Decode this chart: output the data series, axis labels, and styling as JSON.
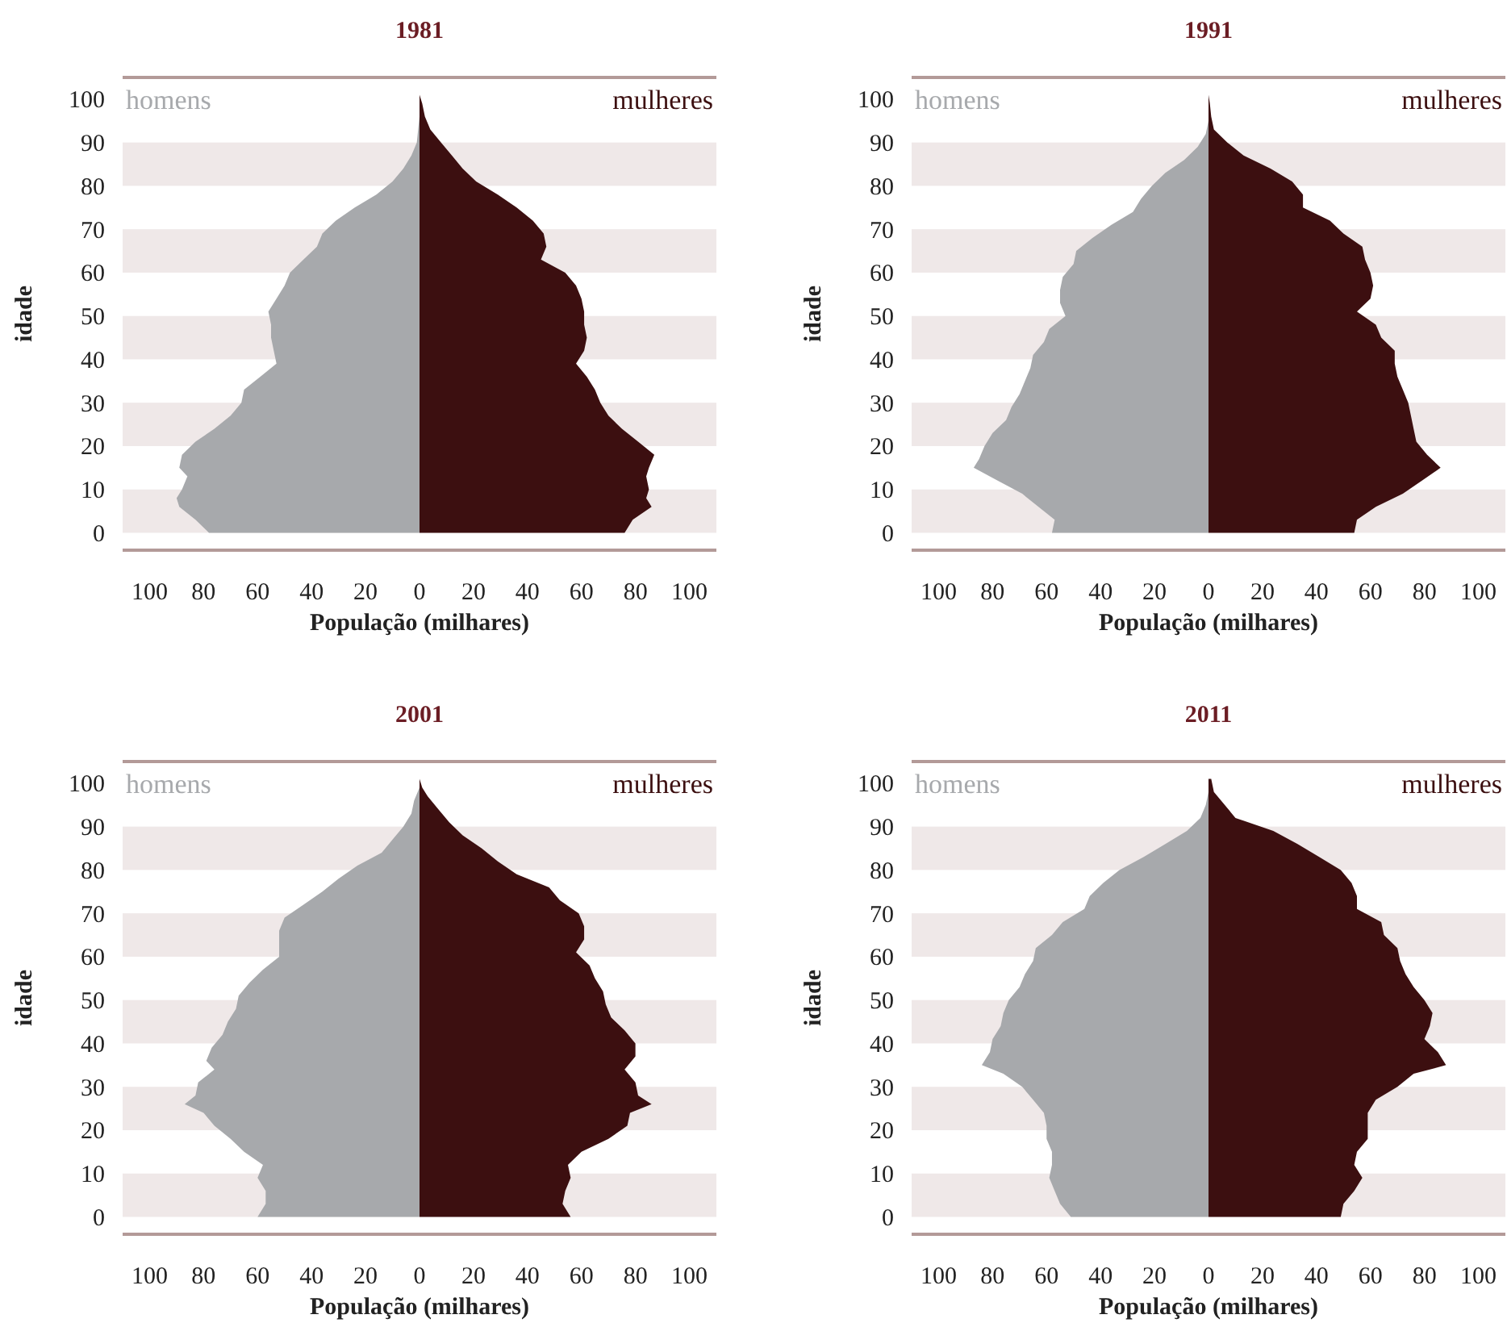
{
  "chart_data": [
    {
      "type": "area",
      "orientation": "horizontal",
      "title": "1981",
      "xlabel": "População (milhares)",
      "ylabel": "idade",
      "xlim": [
        -110,
        110
      ],
      "ylim": [
        -4,
        105
      ],
      "xticks": [
        {
          "value": -100,
          "label": "100"
        },
        {
          "value": -80,
          "label": "80"
        },
        {
          "value": -60,
          "label": "60"
        },
        {
          "value": -40,
          "label": "40"
        },
        {
          "value": -20,
          "label": "20"
        },
        0,
        20,
        40,
        60,
        80,
        100
      ],
      "yticks": [
        0,
        10,
        20,
        30,
        40,
        50,
        60,
        70,
        80,
        90,
        100
      ],
      "bands": [
        {
          "axis": "y",
          "from": 0,
          "to": 10,
          "color": "#efe8e8"
        },
        {
          "axis": "y",
          "from": 20,
          "to": 30,
          "color": "#efe8e8"
        },
        {
          "axis": "y",
          "from": 40,
          "to": 50,
          "color": "#efe8e8"
        },
        {
          "axis": "y",
          "from": 60,
          "to": 70,
          "color": "#efe8e8"
        },
        {
          "axis": "y",
          "from": 80,
          "to": 90,
          "color": "#efe8e8"
        }
      ],
      "series": [
        {
          "name": "homens",
          "color": "#a7a9ac",
          "x": [
            0,
            3,
            6,
            8,
            10,
            13,
            15,
            18,
            21,
            24,
            27,
            30,
            33,
            36,
            39,
            42,
            45,
            48,
            51,
            54,
            57,
            60,
            63,
            66,
            69,
            72,
            75,
            78,
            81,
            84,
            87,
            90,
            93,
            96,
            99,
            101
          ],
          "values": [
            -78,
            -83,
            -89,
            -90,
            -88,
            -86,
            -89,
            -88,
            -83,
            -76,
            -70,
            -66,
            -65,
            -59,
            -53,
            -54,
            -55,
            -55,
            -56,
            -53,
            -50,
            -48,
            -43,
            -38,
            -36,
            -31,
            -24,
            -16,
            -10,
            -6,
            -3,
            -1,
            -0.5,
            0,
            0,
            0
          ]
        },
        {
          "name": "mulheres",
          "color": "#3c0f10",
          "x": [
            0,
            3,
            6,
            8,
            10,
            13,
            15,
            18,
            21,
            24,
            27,
            30,
            33,
            36,
            39,
            42,
            45,
            48,
            51,
            54,
            57,
            60,
            63,
            66,
            69,
            72,
            75,
            78,
            81,
            84,
            87,
            90,
            93,
            96,
            99,
            101
          ],
          "values": [
            76,
            79,
            86,
            84,
            85,
            84,
            85,
            87,
            81,
            75,
            70,
            67,
            65,
            62,
            58,
            61,
            62,
            61,
            61,
            60,
            58,
            54,
            45,
            47,
            46,
            42,
            36,
            29,
            21,
            16,
            12,
            8,
            4,
            2,
            1,
            0
          ]
        }
      ]
    },
    {
      "type": "area",
      "orientation": "horizontal",
      "title": "1991",
      "xlabel": "População (milhares)",
      "ylabel": "idade",
      "xlim": [
        -110,
        110
      ],
      "ylim": [
        -4,
        105
      ],
      "xticks": [
        {
          "value": -100,
          "label": "100"
        },
        {
          "value": -80,
          "label": "80"
        },
        {
          "value": -60,
          "label": "60"
        },
        {
          "value": -40,
          "label": "40"
        },
        {
          "value": -20,
          "label": "20"
        },
        0,
        20,
        40,
        60,
        80,
        100
      ],
      "yticks": [
        0,
        10,
        20,
        30,
        40,
        50,
        60,
        70,
        80,
        90,
        100
      ],
      "bands": [
        {
          "axis": "y",
          "from": 0,
          "to": 10,
          "color": "#efe8e8"
        },
        {
          "axis": "y",
          "from": 20,
          "to": 30,
          "color": "#efe8e8"
        },
        {
          "axis": "y",
          "from": 40,
          "to": 50,
          "color": "#efe8e8"
        },
        {
          "axis": "y",
          "from": 60,
          "to": 70,
          "color": "#efe8e8"
        },
        {
          "axis": "y",
          "from": 80,
          "to": 90,
          "color": "#efe8e8"
        }
      ],
      "series": [
        {
          "name": "homens",
          "color": "#a7a9ac",
          "x": [
            0,
            3,
            6,
            9,
            12,
            15,
            17,
            20,
            23,
            26,
            29,
            32,
            35,
            38,
            41,
            44,
            47,
            50,
            53,
            56,
            59,
            62,
            65,
            68,
            71,
            74,
            77,
            80,
            83,
            86,
            89,
            92,
            95,
            98,
            101
          ],
          "values": [
            -58,
            -57,
            -63,
            -69,
            -78,
            -87,
            -85,
            -83,
            -80,
            -75,
            -73,
            -70,
            -68,
            -66,
            -65,
            -61,
            -59,
            -53,
            -55,
            -55,
            -54,
            -50,
            -49,
            -43,
            -36,
            -28,
            -25,
            -21,
            -16,
            -9,
            -4,
            -1,
            0,
            0,
            0
          ]
        },
        {
          "name": "mulheres",
          "color": "#3c0f10",
          "x": [
            0,
            3,
            6,
            9,
            12,
            15,
            18,
            21,
            24,
            27,
            30,
            33,
            36,
            39,
            42,
            45,
            48,
            51,
            54,
            57,
            60,
            63,
            66,
            69,
            72,
            75,
            78,
            81,
            84,
            87,
            90,
            93,
            96,
            99,
            101
          ],
          "values": [
            54,
            55,
            62,
            72,
            79,
            86,
            81,
            77,
            76,
            75,
            74,
            72,
            70,
            69,
            69,
            64,
            62,
            55,
            60,
            61,
            60,
            58,
            57,
            50,
            45,
            35,
            35,
            31,
            23,
            13,
            7,
            2,
            1,
            0.5,
            0
          ]
        }
      ]
    },
    {
      "type": "area",
      "orientation": "horizontal",
      "title": "2001",
      "xlabel": "População (milhares)",
      "ylabel": "idade",
      "xlim": [
        -110,
        110
      ],
      "ylim": [
        -4,
        105
      ],
      "xticks": [
        {
          "value": -100,
          "label": "100"
        },
        {
          "value": -80,
          "label": "80"
        },
        {
          "value": -60,
          "label": "60"
        },
        {
          "value": -40,
          "label": "40"
        },
        {
          "value": -20,
          "label": "20"
        },
        0,
        20,
        40,
        60,
        80,
        100
      ],
      "yticks": [
        0,
        10,
        20,
        30,
        40,
        50,
        60,
        70,
        80,
        90,
        100
      ],
      "bands": [
        {
          "axis": "y",
          "from": 0,
          "to": 10,
          "color": "#efe8e8"
        },
        {
          "axis": "y",
          "from": 20,
          "to": 30,
          "color": "#efe8e8"
        },
        {
          "axis": "y",
          "from": 40,
          "to": 50,
          "color": "#efe8e8"
        },
        {
          "axis": "y",
          "from": 60,
          "to": 70,
          "color": "#efe8e8"
        },
        {
          "axis": "y",
          "from": 80,
          "to": 90,
          "color": "#efe8e8"
        }
      ],
      "series": [
        {
          "name": "homens",
          "color": "#a7a9ac",
          "x": [
            0,
            3,
            6,
            9,
            12,
            15,
            18,
            21,
            24,
            26,
            28,
            31,
            34,
            36,
            39,
            42,
            45,
            48,
            51,
            54,
            57,
            60,
            63,
            66,
            69,
            72,
            75,
            78,
            81,
            84,
            87,
            90,
            93,
            96,
            99,
            101
          ],
          "values": [
            -60,
            -57,
            -57,
            -60,
            -58,
            -65,
            -70,
            -76,
            -80,
            -87,
            -83,
            -82,
            -76,
            -79,
            -77,
            -73,
            -71,
            -68,
            -67,
            -63,
            -58,
            -52,
            -52,
            -52,
            -50,
            -43,
            -36,
            -30,
            -23,
            -14,
            -10,
            -6,
            -3,
            -2,
            0,
            0
          ]
        },
        {
          "name": "mulheres",
          "color": "#3c0f10",
          "x": [
            0,
            3,
            6,
            9,
            12,
            15,
            18,
            21,
            24,
            26,
            28,
            31,
            34,
            37,
            40,
            43,
            46,
            49,
            52,
            55,
            58,
            61,
            64,
            67,
            70,
            73,
            76,
            79,
            82,
            85,
            88,
            91,
            94,
            97,
            99,
            101
          ],
          "values": [
            56,
            53,
            54,
            56,
            55,
            60,
            70,
            77,
            78,
            86,
            81,
            80,
            76,
            80,
            80,
            76,
            71,
            69,
            68,
            65,
            63,
            58,
            61,
            61,
            59,
            52,
            48,
            36,
            29,
            23,
            16,
            11,
            7,
            3,
            1,
            0
          ]
        }
      ]
    },
    {
      "type": "area",
      "orientation": "horizontal",
      "title": "2011",
      "xlabel": "População (milhares)",
      "ylabel": "idade",
      "xlim": [
        -110,
        110
      ],
      "ylim": [
        -4,
        105
      ],
      "xticks": [
        {
          "value": -100,
          "label": "100"
        },
        {
          "value": -80,
          "label": "80"
        },
        {
          "value": -60,
          "label": "60"
        },
        {
          "value": -40,
          "label": "40"
        },
        {
          "value": -20,
          "label": "20"
        },
        0,
        20,
        40,
        60,
        80,
        100
      ],
      "yticks": [
        0,
        10,
        20,
        30,
        40,
        50,
        60,
        70,
        80,
        90,
        100
      ],
      "bands": [
        {
          "axis": "y",
          "from": 0,
          "to": 10,
          "color": "#efe8e8"
        },
        {
          "axis": "y",
          "from": 20,
          "to": 30,
          "color": "#efe8e8"
        },
        {
          "axis": "y",
          "from": 40,
          "to": 50,
          "color": "#efe8e8"
        },
        {
          "axis": "y",
          "from": 60,
          "to": 70,
          "color": "#efe8e8"
        },
        {
          "axis": "y",
          "from": 80,
          "to": 90,
          "color": "#efe8e8"
        }
      ],
      "series": [
        {
          "name": "homens",
          "color": "#a7a9ac",
          "x": [
            0,
            3,
            6,
            9,
            12,
            15,
            18,
            21,
            24,
            27,
            30,
            33,
            35,
            38,
            41,
            44,
            47,
            50,
            53,
            56,
            59,
            62,
            65,
            68,
            71,
            74,
            77,
            80,
            83,
            86,
            89,
            92,
            95,
            98,
            101
          ],
          "values": [
            -51,
            -55,
            -57,
            -59,
            -58,
            -58,
            -60,
            -60,
            -61,
            -65,
            -69,
            -76,
            -84,
            -81,
            -80,
            -77,
            -76,
            -74,
            -70,
            -68,
            -65,
            -64,
            -58,
            -54,
            -46,
            -44,
            -39,
            -33,
            -24,
            -16,
            -8,
            -3,
            -1,
            0,
            0
          ]
        },
        {
          "name": "mulheres",
          "color": "#3c0f10",
          "x": [
            0,
            3,
            6,
            9,
            12,
            15,
            18,
            21,
            24,
            27,
            30,
            33,
            35,
            38,
            41,
            44,
            47,
            50,
            53,
            56,
            59,
            62,
            65,
            68,
            71,
            74,
            77,
            80,
            83,
            86,
            89,
            92,
            95,
            98,
            101
          ],
          "values": [
            49,
            50,
            54,
            57,
            54,
            55,
            59,
            59,
            59,
            62,
            70,
            76,
            88,
            85,
            80,
            82,
            83,
            80,
            76,
            73,
            71,
            70,
            65,
            64,
            55,
            55,
            53,
            49,
            41,
            33,
            24,
            10,
            6,
            2,
            1
          ]
        }
      ]
    }
  ]
}
